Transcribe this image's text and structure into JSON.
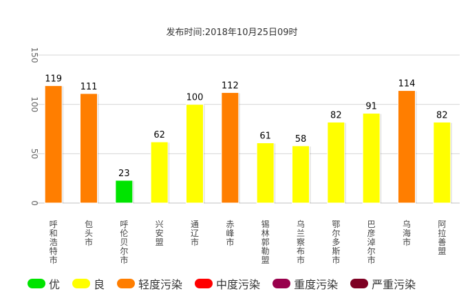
{
  "chart_data": {
    "type": "bar",
    "title": "发布时间:2018年10月25日09时",
    "categories": [
      "呼和浩特市",
      "包头市",
      "呼伦贝尔市",
      "兴安盟",
      "通辽市",
      "赤峰市",
      "锡林郭勒盟",
      "乌兰察布市",
      "鄂尔多斯市",
      "巴彦淖尔市",
      "乌海市",
      "阿拉善盟"
    ],
    "values": [
      119,
      111,
      23,
      62,
      100,
      112,
      61,
      58,
      82,
      91,
      114,
      82
    ],
    "colors": [
      "#ff7e00",
      "#ff7e00",
      "#00e400",
      "#ffff00",
      "#ffff00",
      "#ff7e00",
      "#ffff00",
      "#ffff00",
      "#ffff00",
      "#ffff00",
      "#ff7e00",
      "#ffff00"
    ],
    "ylim": [
      0,
      150
    ],
    "yticks": [
      "0",
      "50",
      "100",
      "150"
    ],
    "grid": true,
    "legend_position": "bottom"
  },
  "legend": [
    {
      "label": "优",
      "color": "#00e400"
    },
    {
      "label": "良",
      "color": "#ffff00"
    },
    {
      "label": "轻度污染",
      "color": "#ff7e00"
    },
    {
      "label": "中度污染",
      "color": "#ff0000"
    },
    {
      "label": "重度污染",
      "color": "#99004c"
    },
    {
      "label": "严重污染",
      "color": "#7e0023"
    }
  ]
}
